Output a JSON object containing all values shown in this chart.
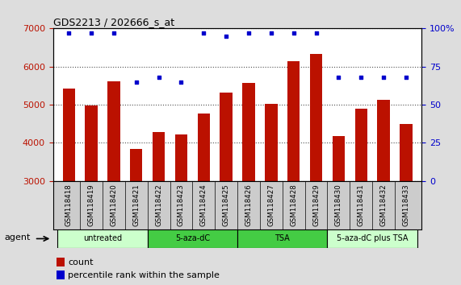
{
  "title": "GDS2213 / 202666_s_at",
  "samples": [
    "GSM118418",
    "GSM118419",
    "GSM118420",
    "GSM118421",
    "GSM118422",
    "GSM118423",
    "GSM118424",
    "GSM118425",
    "GSM118426",
    "GSM118427",
    "GSM118428",
    "GSM118429",
    "GSM118430",
    "GSM118431",
    "GSM118432",
    "GSM118433"
  ],
  "counts": [
    5430,
    4980,
    5620,
    3850,
    4280,
    4220,
    4760,
    5310,
    5580,
    5030,
    6150,
    6330,
    4170,
    4900,
    5120,
    4500
  ],
  "percentiles": [
    97,
    97,
    97,
    65,
    68,
    65,
    97,
    95,
    97,
    97,
    97,
    97,
    68,
    68,
    68,
    68
  ],
  "bar_color": "#bb1100",
  "dot_color": "#0000cc",
  "ylim_left": [
    3000,
    7000
  ],
  "ylim_right": [
    0,
    100
  ],
  "yticks_left": [
    3000,
    4000,
    5000,
    6000,
    7000
  ],
  "yticks_right": [
    0,
    25,
    50,
    75,
    100
  ],
  "right_tick_labels": [
    "0",
    "25",
    "50",
    "75",
    "100%"
  ],
  "groups": [
    {
      "label": "untreated",
      "start": 0,
      "end": 4,
      "color": "#ccffcc"
    },
    {
      "label": "5-aza-dC",
      "start": 4,
      "end": 8,
      "color": "#44cc44"
    },
    {
      "label": "TSA",
      "start": 8,
      "end": 12,
      "color": "#44cc44"
    },
    {
      "label": "5-aza-dC plus TSA",
      "start": 12,
      "end": 16,
      "color": "#ccffcc"
    }
  ],
  "agent_label": "agent",
  "legend_count_label": "count",
  "legend_percentile_label": "percentile rank within the sample",
  "background_color": "#dddddd",
  "plot_bg_color": "#ffffff",
  "sample_box_color": "#cccccc"
}
